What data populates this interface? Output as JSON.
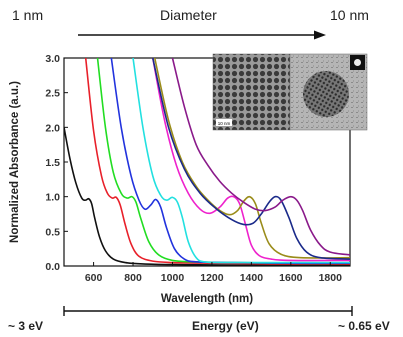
{
  "diameter_bar": {
    "left_label": "1 nm",
    "title": "Diameter",
    "right_label": "10 nm"
  },
  "energy_bar": {
    "left_label": "~ 3 eV",
    "title": "Energy (eV)",
    "right_label": "~ 0.65 eV"
  },
  "inset": {
    "scale_label": "10 nm"
  },
  "chart_data": {
    "type": "line",
    "title": "",
    "xlabel": "Wavelength (nm)",
    "ylabel": "Normalized Absorbance (a.u.)",
    "xlim": [
      450,
      1900
    ],
    "ylim": [
      0,
      3.0
    ],
    "xticks": [
      600,
      800,
      1000,
      1200,
      1400,
      1600,
      1800
    ],
    "yticks": [
      0.0,
      0.5,
      1.0,
      1.5,
      2.0,
      2.5,
      3.0
    ],
    "grid": false,
    "series": [
      {
        "color": "#111111",
        "x": [
          450,
          480,
          510,
          540,
          560,
          575,
          590,
          605,
          630,
          660,
          700,
          760,
          850,
          1000,
          1200,
          1500,
          1900
        ],
        "y": [
          2.0,
          1.55,
          1.2,
          0.98,
          0.95,
          0.97,
          0.9,
          0.7,
          0.42,
          0.22,
          0.1,
          0.05,
          0.03,
          0.02,
          0.015,
          0.01,
          0.01
        ]
      },
      {
        "color": "#e8202a",
        "x": [
          560,
          600,
          640,
          670,
          695,
          715,
          735,
          760,
          790,
          830,
          900,
          1000,
          1200,
          1500,
          1900
        ],
        "y": [
          3.0,
          1.95,
          1.3,
          1.05,
          0.98,
          0.99,
          0.88,
          0.6,
          0.32,
          0.14,
          0.07,
          0.05,
          0.04,
          0.03,
          0.03
        ]
      },
      {
        "color": "#22dd22",
        "x": [
          620,
          660,
          700,
          740,
          770,
          795,
          815,
          840,
          880,
          930,
          1000,
          1100,
          1300,
          1600,
          1900
        ],
        "y": [
          3.0,
          2.0,
          1.35,
          1.05,
          0.98,
          1.0,
          0.92,
          0.68,
          0.35,
          0.16,
          0.08,
          0.06,
          0.05,
          0.04,
          0.04
        ]
      },
      {
        "color": "#2233dd",
        "x": [
          690,
          740,
          790,
          830,
          860,
          890,
          915,
          940,
          970,
          1010,
          1060,
          1120,
          1300,
          1600,
          1900
        ],
        "y": [
          3.0,
          2.0,
          1.3,
          0.95,
          0.82,
          0.88,
          0.96,
          0.85,
          0.55,
          0.25,
          0.1,
          0.06,
          0.05,
          0.04,
          0.04
        ]
      },
      {
        "color": "#22e0e0",
        "x": [
          800,
          850,
          900,
          940,
          970,
          1000,
          1025,
          1050,
          1080,
          1120,
          1160,
          1250,
          1500,
          1900
        ],
        "y": [
          3.0,
          2.0,
          1.3,
          1.02,
          0.95,
          0.99,
          0.92,
          0.7,
          0.35,
          0.12,
          0.06,
          0.05,
          0.05,
          0.05
        ]
      },
      {
        "color": "#ee22cc",
        "x": [
          900,
          960,
          1020,
          1080,
          1140,
          1190,
          1240,
          1280,
          1310,
          1340,
          1370,
          1400,
          1440,
          1500,
          1600,
          1900
        ],
        "y": [
          3.0,
          2.1,
          1.45,
          1.05,
          0.82,
          0.76,
          0.85,
          0.98,
          1.0,
          0.9,
          0.6,
          0.3,
          0.15,
          0.1,
          0.08,
          0.08
        ]
      },
      {
        "color": "#9a8c1a",
        "x": [
          910,
          980,
          1050,
          1120,
          1180,
          1240,
          1290,
          1330,
          1360,
          1390,
          1420,
          1450,
          1490,
          1550,
          1650,
          1900
        ],
        "y": [
          3.0,
          2.1,
          1.5,
          1.15,
          0.95,
          0.8,
          0.74,
          0.8,
          0.93,
          1.0,
          0.9,
          0.62,
          0.32,
          0.17,
          0.12,
          0.12
        ]
      },
      {
        "color": "#1a2a8a",
        "x": [
          900,
          980,
          1060,
          1140,
          1220,
          1300,
          1360,
          1410,
          1450,
          1490,
          1520,
          1550,
          1590,
          1630,
          1680,
          1750,
          1900
        ],
        "y": [
          3.0,
          2.0,
          1.4,
          1.05,
          0.83,
          0.67,
          0.6,
          0.62,
          0.75,
          0.92,
          1.0,
          0.95,
          0.7,
          0.4,
          0.2,
          0.12,
          0.1
        ]
      },
      {
        "color": "#8a1a8a",
        "x": [
          1000,
          1060,
          1120,
          1180,
          1240,
          1300,
          1360,
          1420,
          1470,
          1520,
          1560,
          1600,
          1630,
          1660,
          1700,
          1750,
          1800,
          1900
        ],
        "y": [
          3.0,
          2.3,
          1.75,
          1.45,
          1.22,
          1.05,
          0.92,
          0.82,
          0.8,
          0.85,
          0.95,
          1.0,
          0.95,
          0.8,
          0.52,
          0.3,
          0.2,
          0.16
        ]
      }
    ]
  }
}
